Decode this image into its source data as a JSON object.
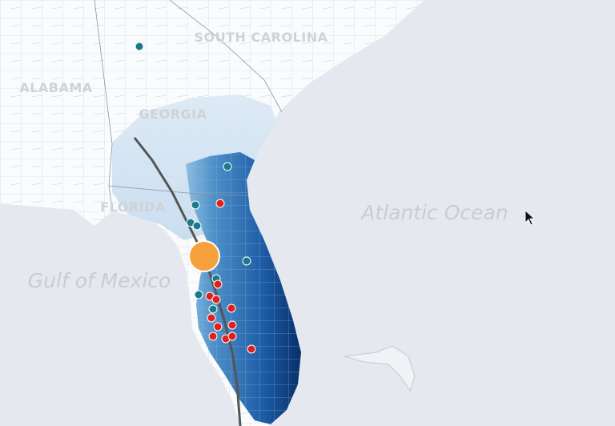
{
  "labels": {
    "states": [
      "SOUTH CAROLINA",
      "ALABAMA",
      "GEORGIA",
      "FLORIDA"
    ],
    "water": [
      "Atlantic Ocean",
      "Gulf of Mexico"
    ]
  }
}
